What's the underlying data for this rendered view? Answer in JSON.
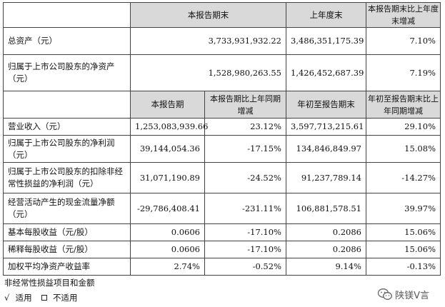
{
  "table1": {
    "headers": [
      "",
      "本报告期末",
      "上年度末",
      "本报告期末比上年度末增减"
    ],
    "rows": [
      {
        "label": "总资产（元）",
        "values": [
          "3,733,931,932.22",
          "3,486,351,175.39",
          "7.10%"
        ]
      },
      {
        "label_lines": [
          "归属于上市公司股东的净资产",
          "（元）"
        ],
        "values": [
          "1,528,980,263.55",
          "1,426,452,687.39",
          "7.19%"
        ]
      }
    ]
  },
  "table2": {
    "headers": [
      "",
      "本报告期",
      "本报告期比上年同期增减",
      "年初至报告期末",
      "年初至报告期末比上年同期增减"
    ],
    "header_lines": {
      "col2": [
        "本报告期比上年同期",
        "增减"
      ],
      "col4": [
        "年初至报告期末比上",
        "年同期增减"
      ]
    },
    "rows": [
      {
        "label_lines": [
          "营业收入（元）"
        ],
        "values": [
          "1,253,083,939.66",
          "23.12%",
          "3,597,713,215.61",
          "29.10%"
        ]
      },
      {
        "label_lines": [
          "归属于上市公司股东的净利润",
          "（元）"
        ],
        "values": [
          "39,144,054.36",
          "-17.15%",
          "134,846,849.97",
          "15.08%"
        ]
      },
      {
        "label_lines": [
          "归属于上市公司股东的扣除非经",
          "常性损益的净利润（元）"
        ],
        "values": [
          "31,071,190.89",
          "-24.52%",
          "91,237,789.14",
          "-14.27%"
        ]
      },
      {
        "label_lines": [
          "经营活动产生的现金流量净额",
          "（元）"
        ],
        "values": [
          "-29,786,408.41",
          "-231.11%",
          "106,881,578.51",
          "39.97%"
        ]
      },
      {
        "label_lines": [
          "基本每股收益（元/股）"
        ],
        "values": [
          "0.0606",
          "-17.10%",
          "0.2086",
          "15.06%"
        ]
      },
      {
        "label_lines": [
          "稀释每股收益（元/股）"
        ],
        "values": [
          "0.0606",
          "-17.10%",
          "0.2086",
          "15.06%"
        ]
      },
      {
        "label_lines": [
          "加权平均净资产收益率"
        ],
        "values": [
          "2.74%",
          "-0.52%",
          "9.14%",
          "-0.13%"
        ]
      }
    ]
  },
  "notes": {
    "line1": "非经常性损益项目和金额",
    "check_mark": "√",
    "applicable": "适用",
    "not_applicable": "不适用"
  },
  "watermark": {
    "text": "陕镁V言",
    "icon": "wechat-icon"
  }
}
